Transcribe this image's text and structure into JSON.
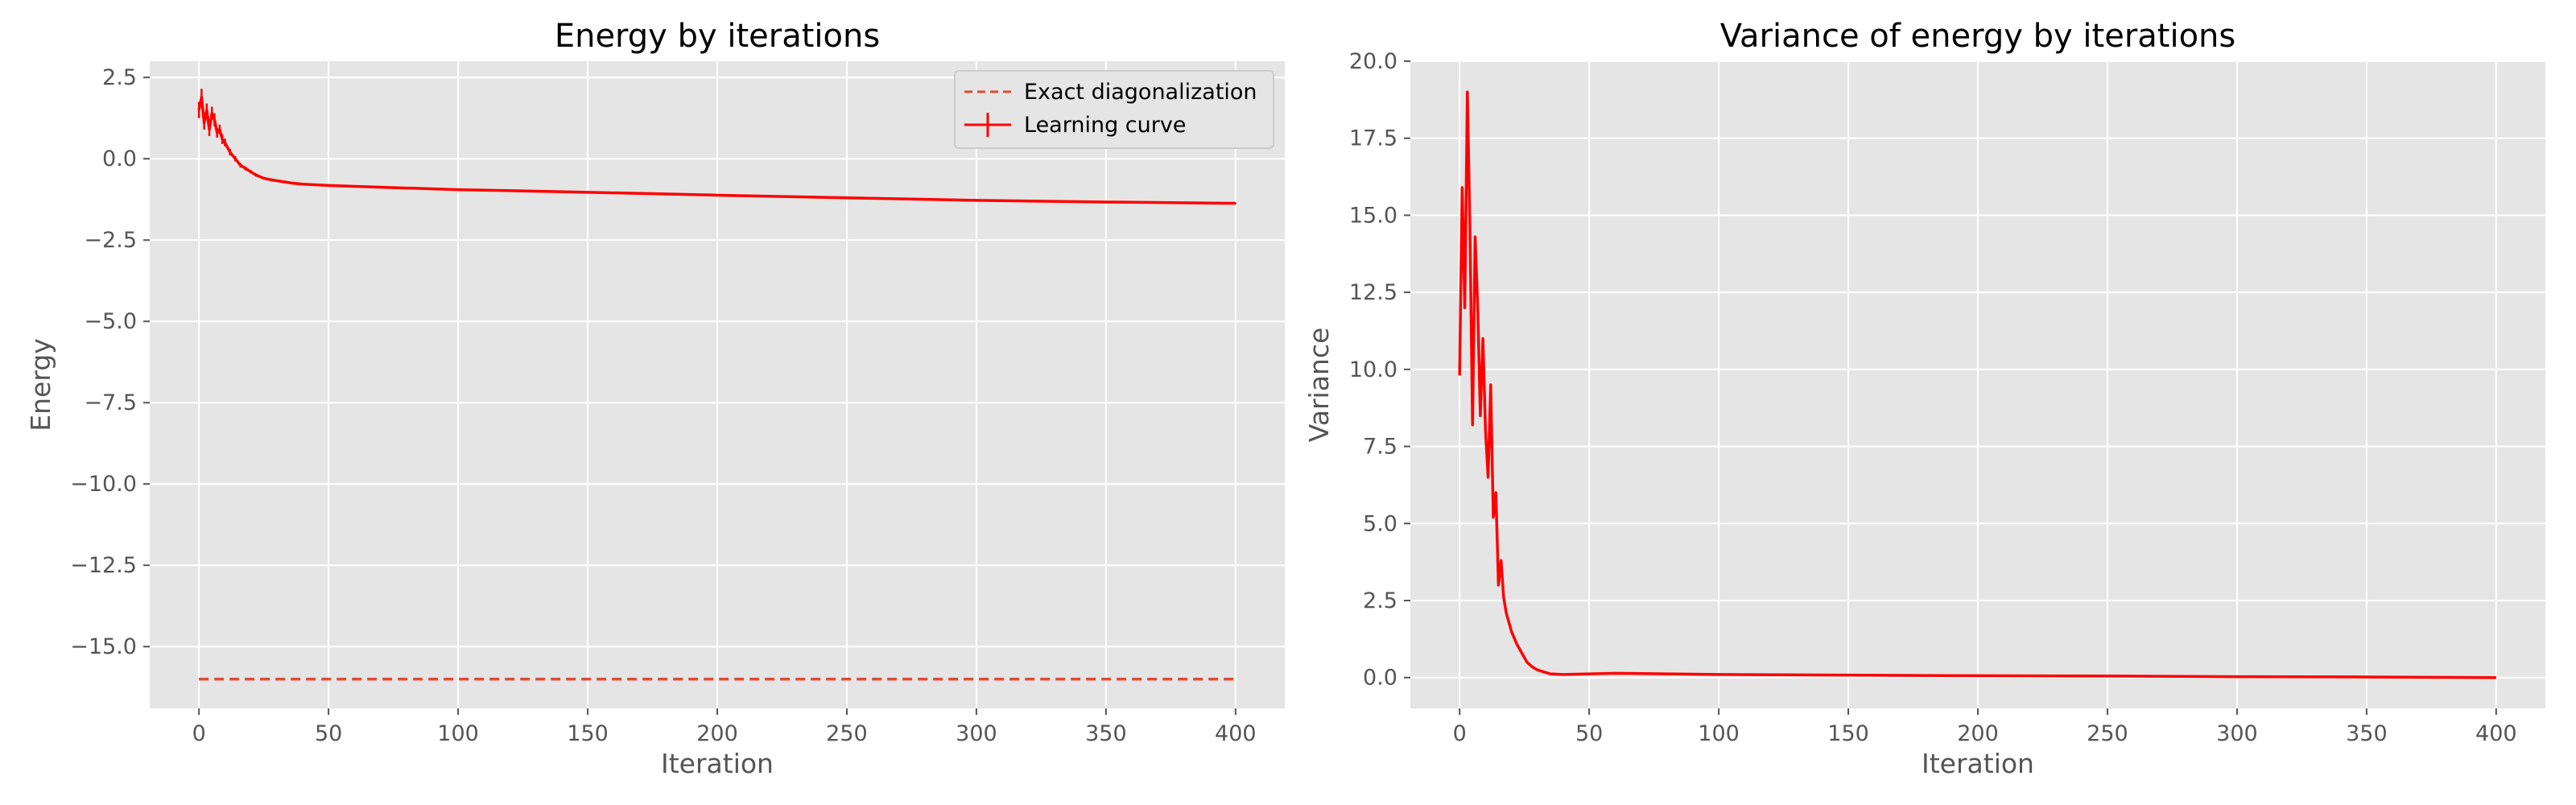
{
  "chart_data": [
    {
      "type": "line",
      "title": "Energy by iterations",
      "xlabel": "Iteration",
      "ylabel": "Energy",
      "xlim": [
        -19,
        419
      ],
      "ylim": [
        -16.9,
        3.0
      ],
      "xticks": [
        0,
        50,
        100,
        150,
        200,
        250,
        300,
        350,
        400
      ],
      "xtick_labels": [
        "0",
        "50",
        "100",
        "150",
        "200",
        "250",
        "300",
        "350",
        "400"
      ],
      "yticks": [
        2.5,
        0.0,
        -2.5,
        -5.0,
        -7.5,
        -10.0,
        -12.5,
        -15.0
      ],
      "ytick_labels": [
        "2.5",
        "0.0",
        "−2.5",
        "−5.0",
        "−7.5",
        "−10.0",
        "−12.5",
        "−15.0"
      ],
      "grid": true,
      "legend_position": "top-right",
      "series": [
        {
          "name": "Exact diagonalization",
          "style": "dashed",
          "color": "#e24a33",
          "x": [
            0,
            400
          ],
          "y": [
            -16.0,
            -16.0
          ]
        },
        {
          "name": "Learning curve",
          "style": "solid-with-errorbars",
          "color": "#ff0000",
          "x": [
            0,
            1,
            2,
            3,
            4,
            5,
            6,
            7,
            8,
            9,
            10,
            12,
            14,
            16,
            18,
            20,
            22,
            25,
            28,
            32,
            36,
            40,
            50,
            60,
            80,
            100,
            150,
            200,
            250,
            300,
            350,
            400
          ],
          "y": [
            1.5,
            1.9,
            1.1,
            1.5,
            0.9,
            1.4,
            1.2,
            0.8,
            0.9,
            0.6,
            0.5,
            0.2,
            0.0,
            -0.2,
            -0.3,
            -0.4,
            -0.5,
            -0.6,
            -0.65,
            -0.7,
            -0.75,
            -0.78,
            -0.82,
            -0.85,
            -0.9,
            -0.95,
            -1.03,
            -1.12,
            -1.2,
            -1.28,
            -1.33,
            -1.37
          ],
          "err": [
            0.25,
            0.25,
            0.2,
            0.2,
            0.2,
            0.2,
            0.2,
            0.15,
            0.15,
            0.15,
            0.12,
            0.1,
            0.08,
            0.07,
            0.06,
            0.05,
            0.05,
            0.04,
            0.04,
            0.03,
            0.03,
            0.03,
            0.02,
            0.02,
            0.02,
            0.02,
            0.02,
            0.02,
            0.02,
            0.02,
            0.02,
            0.02
          ]
        }
      ]
    },
    {
      "type": "line",
      "title": "Variance of energy by iterations",
      "xlabel": "Iteration",
      "ylabel": "Variance",
      "xlim": [
        -19,
        419
      ],
      "ylim": [
        -1.0,
        20.0
      ],
      "xticks": [
        0,
        50,
        100,
        150,
        200,
        250,
        300,
        350,
        400
      ],
      "xtick_labels": [
        "0",
        "50",
        "100",
        "150",
        "200",
        "250",
        "300",
        "350",
        "400"
      ],
      "yticks": [
        0.0,
        2.5,
        5.0,
        7.5,
        10.0,
        12.5,
        15.0,
        17.5,
        20.0
      ],
      "ytick_labels": [
        "0.0",
        "2.5",
        "5.0",
        "7.5",
        "10.0",
        "12.5",
        "15.0",
        "17.5",
        "20.0"
      ],
      "grid": true,
      "series": [
        {
          "style": "solid",
          "color": "#ff0000",
          "x": [
            0,
            1,
            2,
            3,
            4,
            5,
            6,
            7,
            8,
            9,
            10,
            11,
            12,
            13,
            14,
            15,
            16,
            17,
            18,
            19,
            20,
            22,
            24,
            26,
            28,
            30,
            35,
            40,
            50,
            60,
            80,
            100,
            150,
            200,
            250,
            300,
            350,
            400
          ],
          "y": [
            9.8,
            15.9,
            12.0,
            19.0,
            14.5,
            8.2,
            14.3,
            12.0,
            8.5,
            11.0,
            8.0,
            6.5,
            9.5,
            5.2,
            6.0,
            3.0,
            3.8,
            2.6,
            2.1,
            1.8,
            1.5,
            1.1,
            0.8,
            0.5,
            0.35,
            0.25,
            0.12,
            0.1,
            0.12,
            0.14,
            0.12,
            0.1,
            0.08,
            0.06,
            0.05,
            0.03,
            0.02,
            0.0
          ]
        }
      ]
    }
  ]
}
